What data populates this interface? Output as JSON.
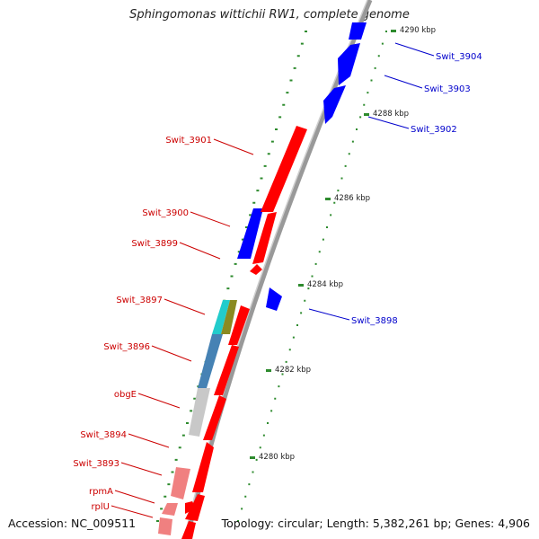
{
  "title": "Sphingomonas wittichii RW1, complete genome",
  "accession": "Accession: NC_009511",
  "topology": "Topology: circular; Length: 5,382,261 bp; Genes: 4,906",
  "colors": {
    "forward_gene": "#ff0000",
    "reverse_gene": "#0000ff",
    "forward_label": "#cc0000",
    "reverse_label": "#0000cc",
    "backbone": "#999999",
    "tick": "#2e8b2e",
    "cog_cyan": "#22cccc",
    "cog_olive": "#8a8a22",
    "cog_steelblue": "#4682b4",
    "cog_gray": "#c8c8c8",
    "cog_pink": "#f08080"
  },
  "scale_labels": [
    "4290 kbp",
    "4288 kbp",
    "4286 kbp",
    "4284 kbp",
    "4282 kbp",
    "4280 kbp"
  ],
  "reverse_labels": [
    "Swit_3904",
    "Swit_3903",
    "Swit_3902",
    "Swit_3898"
  ],
  "forward_labels": [
    "Swit_3901",
    "Swit_3900",
    "Swit_3899",
    "Swit_3897",
    "Swit_3896",
    "obgE",
    "Swit_3894",
    "Swit_3893",
    "rpmA",
    "rplU"
  ]
}
